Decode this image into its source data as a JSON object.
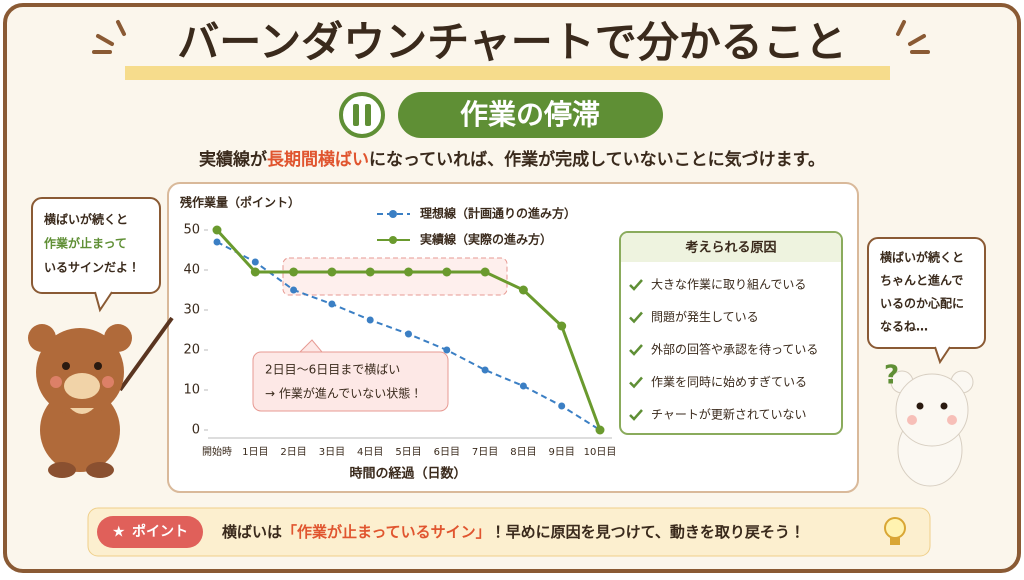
{
  "header": {
    "title": "バーンダウンチャートで分かること",
    "section_title": "作業の停滞",
    "lead": [
      "実績線が",
      "長期間横ばい",
      "になっていれば、作業が完成していないことに気づけます。"
    ]
  },
  "chart_data": {
    "type": "line",
    "y_label": "残作業量（ポイント）",
    "x_label": "時間の経過（日数）",
    "categories": [
      "開始時",
      "1日目",
      "2日目",
      "3日目",
      "4日目",
      "5日目",
      "6日目",
      "7日目",
      "8日目",
      "9日目",
      "10日目"
    ],
    "series": [
      {
        "name": "理想線（計画通りの進み方）",
        "color": "#3b7fc4",
        "dash": true,
        "values": [
          47,
          42,
          35,
          31.5,
          27.5,
          24,
          20,
          15,
          11,
          6,
          0
        ]
      },
      {
        "name": "実績線（実際の進み方）",
        "color": "#6a9a2e",
        "dash": false,
        "values": [
          50,
          39.5,
          39.5,
          39.5,
          39.5,
          39.5,
          39.5,
          39.5,
          35,
          26,
          0
        ]
      }
    ],
    "ylim": [
      0,
      50
    ],
    "yticks": [
      0,
      10,
      20,
      30,
      40,
      50
    ],
    "annotation": [
      "2日目〜6日目まで横ばい",
      "→ 作業が進んでいない状態！"
    ]
  },
  "causes": {
    "title": "考えられる原因",
    "items": [
      "大きな作業に取り組んでいる",
      "問題が発生している",
      "外部の回答や承認を待っている",
      "作業を同時に始めすぎている",
      "チャートが更新されていない"
    ]
  },
  "left_bubble": [
    "横ばいが続くと",
    "作業が止まって",
    "いるサインだよ！"
  ],
  "right_bubble": [
    "横ばいが続くと",
    "ちゃんと進んで",
    "いるのか心配に",
    "なるね…"
  ],
  "point": {
    "badge": "ポイント",
    "text": [
      "横ばいは",
      "「作業が止まっているサイン」",
      "！早めに原因を見つけて、動きを取り戻そう！"
    ]
  }
}
